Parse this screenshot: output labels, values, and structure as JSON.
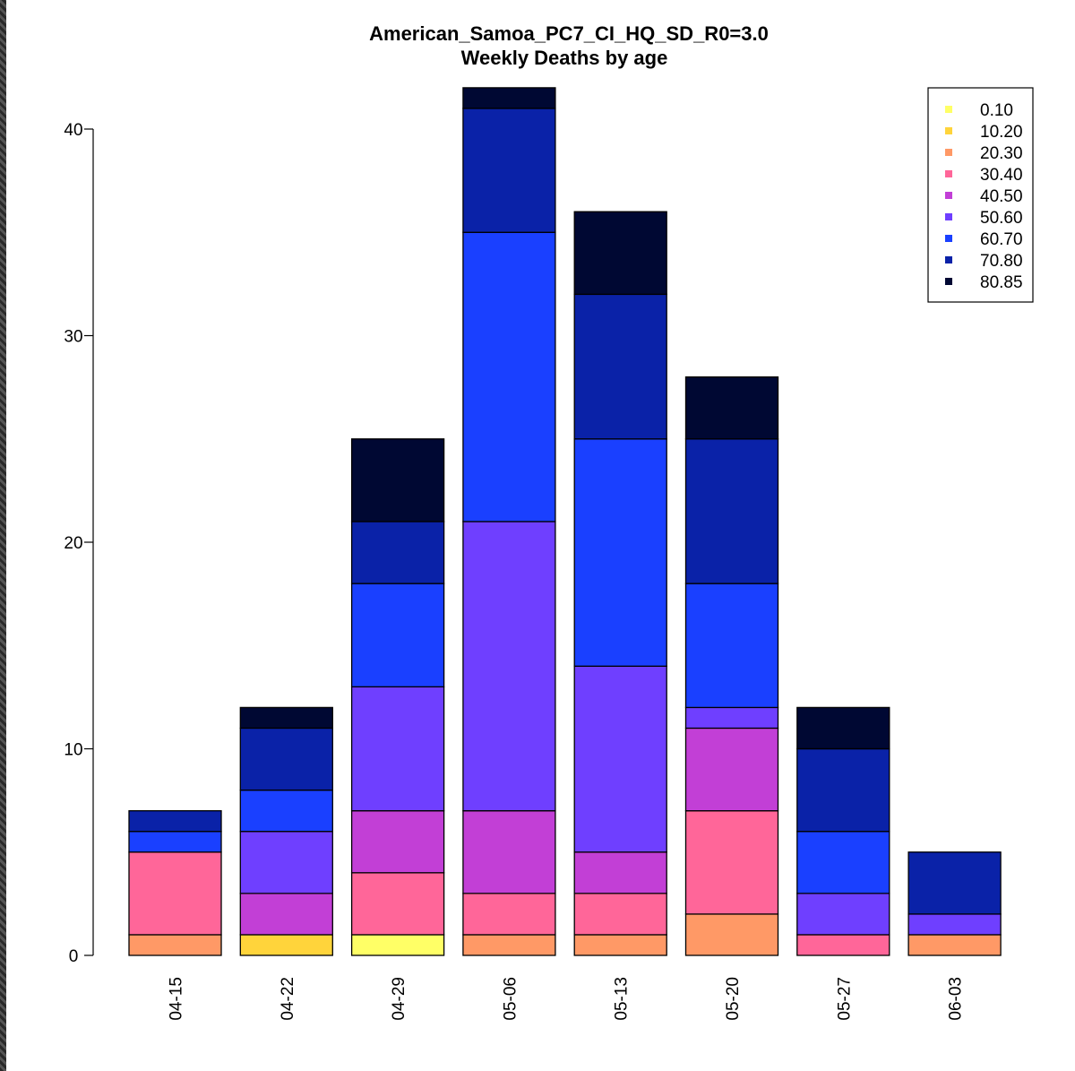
{
  "chart_data": {
    "type": "bar",
    "stacked": true,
    "title": "American_Samoa_PC7_CI_HQ_SD_R0=3.0",
    "subtitle": "Weekly Deaths by age",
    "xlabel": "",
    "ylabel": "",
    "ylim": [
      0,
      42
    ],
    "y_ticks": [
      "0",
      "10",
      "20",
      "30",
      "40"
    ],
    "legend_position": "top-right",
    "categories": [
      "04-15",
      "04-22",
      "04-29",
      "05-06",
      "05-13",
      "05-20",
      "05-27",
      "06-03"
    ],
    "series": [
      {
        "name": "0.10",
        "color": "#FFFF66",
        "values": [
          0,
          0,
          1,
          0,
          0,
          0,
          0,
          0
        ]
      },
      {
        "name": "10.20",
        "color": "#FFD43B",
        "values": [
          0,
          1,
          0,
          0,
          0,
          0,
          0,
          0
        ]
      },
      {
        "name": "20.30",
        "color": "#FF9966",
        "values": [
          1,
          0,
          0,
          1,
          1,
          2,
          0,
          1
        ]
      },
      {
        "name": "30.40",
        "color": "#FF6699",
        "values": [
          4,
          0,
          3,
          2,
          2,
          5,
          1,
          0
        ]
      },
      {
        "name": "40.50",
        "color": "#C23FD6",
        "values": [
          0,
          2,
          3,
          4,
          2,
          4,
          0,
          0
        ]
      },
      {
        "name": "50.60",
        "color": "#6F3FFF",
        "values": [
          0,
          3,
          6,
          14,
          9,
          1,
          2,
          1
        ]
      },
      {
        "name": "60.70",
        "color": "#1A40FF",
        "values": [
          1,
          2,
          5,
          14,
          11,
          6,
          3,
          0
        ]
      },
      {
        "name": "70.80",
        "color": "#0A22A8",
        "values": [
          1,
          3,
          3,
          6,
          7,
          7,
          4,
          3
        ]
      },
      {
        "name": "80.85",
        "color": "#000833",
        "values": [
          0,
          1,
          4,
          1,
          4,
          3,
          2,
          0
        ]
      }
    ]
  }
}
